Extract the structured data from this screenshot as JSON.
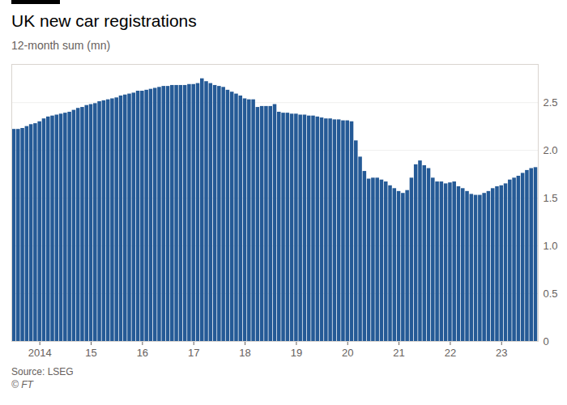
{
  "chart_data": {
    "type": "bar",
    "title": "UK new car registrations",
    "subtitle": "12-month sum (mn)",
    "source": "Source: LSEG",
    "credit": "© FT",
    "color": "#255a96",
    "grid": true,
    "categories": [
      null,
      null,
      null,
      null,
      null,
      null,
      "2014",
      null,
      null,
      null,
      null,
      null,
      null,
      null,
      null,
      null,
      null,
      null,
      "15",
      null,
      null,
      null,
      null,
      null,
      null,
      null,
      null,
      null,
      null,
      null,
      "16",
      null,
      null,
      null,
      null,
      null,
      null,
      null,
      null,
      null,
      null,
      null,
      "17",
      null,
      null,
      null,
      null,
      null,
      null,
      null,
      null,
      null,
      null,
      null,
      "18",
      null,
      null,
      null,
      null,
      null,
      null,
      null,
      null,
      null,
      null,
      null,
      "19",
      null,
      null,
      null,
      null,
      null,
      null,
      null,
      null,
      null,
      null,
      null,
      "20",
      null,
      null,
      null,
      null,
      null,
      null,
      null,
      null,
      null,
      null,
      null,
      "21",
      null,
      null,
      null,
      null,
      null,
      null,
      null,
      null,
      null,
      null,
      null,
      "22",
      null,
      null,
      null,
      null,
      null,
      null,
      null,
      null,
      null,
      null,
      null,
      "23",
      null,
      null,
      null,
      null,
      null,
      null,
      null,
      null
    ],
    "values": [
      2.22,
      2.22,
      2.23,
      2.25,
      2.27,
      2.28,
      2.3,
      2.33,
      2.35,
      2.36,
      2.37,
      2.38,
      2.39,
      2.4,
      2.42,
      2.44,
      2.45,
      2.47,
      2.48,
      2.49,
      2.51,
      2.52,
      2.53,
      2.54,
      2.55,
      2.57,
      2.58,
      2.59,
      2.6,
      2.62,
      2.62,
      2.63,
      2.64,
      2.65,
      2.66,
      2.67,
      2.67,
      2.68,
      2.68,
      2.68,
      2.68,
      2.69,
      2.69,
      2.7,
      2.75,
      2.72,
      2.7,
      2.68,
      2.67,
      2.66,
      2.63,
      2.61,
      2.59,
      2.57,
      2.54,
      2.53,
      2.53,
      2.45,
      2.46,
      2.46,
      2.46,
      2.48,
      2.4,
      2.39,
      2.39,
      2.38,
      2.38,
      2.37,
      2.37,
      2.36,
      2.36,
      2.35,
      2.34,
      2.33,
      2.33,
      2.32,
      2.32,
      2.31,
      2.31,
      2.3,
      2.1,
      1.93,
      1.78,
      1.7,
      1.71,
      1.71,
      1.69,
      1.67,
      1.63,
      1.6,
      1.57,
      1.55,
      1.58,
      1.71,
      1.85,
      1.89,
      1.84,
      1.81,
      1.71,
      1.67,
      1.67,
      1.65,
      1.66,
      1.67,
      1.62,
      1.6,
      1.57,
      1.54,
      1.53,
      1.53,
      1.55,
      1.57,
      1.6,
      1.62,
      1.63,
      1.65,
      1.69,
      1.71,
      1.73,
      1.76,
      1.79,
      1.81,
      1.82
    ],
    "ylim": [
      0,
      2.9
    ],
    "yticks": [
      0,
      0.5,
      {
        "value": 1,
        "label": "1.0"
      },
      1.5,
      {
        "value": 2,
        "label": "2.0"
      },
      2.5
    ]
  }
}
